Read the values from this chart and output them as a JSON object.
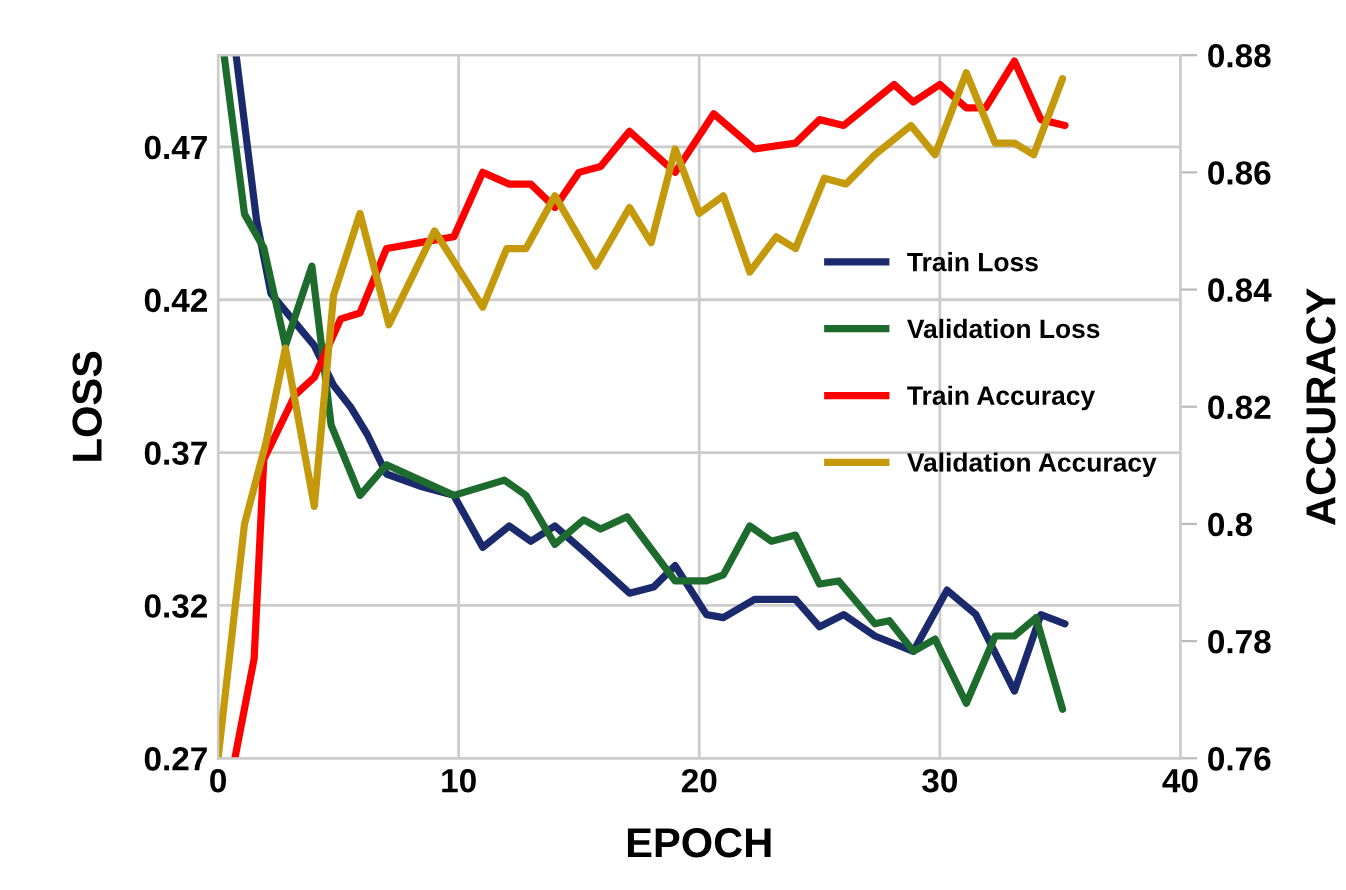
{
  "chart_data": {
    "type": "line",
    "xlabel": "EPOCH",
    "ylabel": "LOSS",
    "y2label": "ACCURACY",
    "xlim": [
      0,
      40
    ],
    "xticks": [
      0,
      10,
      20,
      30,
      40
    ],
    "ylim": [
      0.27,
      0.5
    ],
    "yticks": [
      0.27,
      0.32,
      0.37,
      0.42,
      0.47
    ],
    "y2lim": [
      0.76,
      0.88
    ],
    "y2ticks": [
      0.76,
      0.78,
      {
        "value": 0.8,
        "label": "0.8"
      },
      0.82,
      0.84,
      0.86,
      0.88
    ],
    "grid": true,
    "legend": "right",
    "line_style": "solid",
    "marker": "none",
    "series": [
      {
        "name": "Train Loss",
        "color": "#1a2a6c",
        "x": [
          0.75,
          1.6,
          2.2,
          4,
          4.8,
          5.5,
          6.2,
          7,
          8.4,
          9.8,
          11,
          12.1,
          13,
          14,
          15.3,
          17.1,
          18.1,
          19,
          20.3,
          21,
          22.3,
          24,
          25,
          26,
          27.3,
          28.9,
          30.3,
          31.5,
          33.1,
          34.2,
          35.2
        ],
        "values": [
          0.5,
          0.446,
          0.422,
          0.405,
          0.392,
          0.385,
          0.376,
          0.363,
          0.359,
          0.356,
          0.339,
          0.346,
          0.341,
          0.346,
          0.337,
          0.324,
          0.326,
          0.333,
          0.317,
          0.316,
          0.322,
          0.322,
          0.313,
          0.317,
          0.31,
          0.305,
          0.325,
          0.317,
          0.292,
          0.317,
          0.314
        ]
      },
      {
        "name": "Validation Loss",
        "color": "#1e6b2e",
        "x": [
          0.25,
          1.1,
          1.9,
          2.8,
          3.9,
          4.7,
          5.9,
          7,
          8.4,
          9.8,
          11.9,
          12.8,
          14,
          15.2,
          15.9,
          17,
          19,
          20.3,
          21,
          22.1,
          23,
          24,
          25,
          25.8,
          27.3,
          27.9,
          28.9,
          29.8,
          31.1,
          32.3,
          33.1,
          34,
          35.1
        ],
        "values": [
          0.5,
          0.448,
          0.437,
          0.405,
          0.431,
          0.379,
          0.356,
          0.366,
          0.361,
          0.356,
          0.361,
          0.356,
          0.34,
          0.348,
          0.345,
          0.349,
          0.328,
          0.328,
          0.33,
          0.346,
          0.341,
          0.343,
          0.327,
          0.328,
          0.314,
          0.315,
          0.305,
          0.309,
          0.288,
          0.31,
          0.31,
          0.316,
          0.286
        ]
      },
      {
        "name": "Train Accuracy",
        "color": "#ff0000",
        "axis": "y2",
        "x": [
          0.7,
          1.5,
          1.9,
          3.2,
          4,
          5.1,
          5.9,
          7,
          8.4,
          9.8,
          11,
          12.1,
          13,
          14,
          15,
          15.9,
          17.1,
          19,
          20.6,
          22.3,
          24,
          25,
          26,
          28.1,
          28.9,
          30,
          31.1,
          31.9,
          33.1,
          34.2,
          35.2
        ],
        "values": [
          0.76,
          0.777,
          0.811,
          0.822,
          0.825,
          0.835,
          0.836,
          0.847,
          0.848,
          0.849,
          0.86,
          0.858,
          0.858,
          0.854,
          0.86,
          0.861,
          0.867,
          0.86,
          0.87,
          0.864,
          0.865,
          0.869,
          0.868,
          0.875,
          0.872,
          0.875,
          0.871,
          0.871,
          0.879,
          0.869,
          0.868
        ]
      },
      {
        "name": "Validation Accuracy",
        "color": "#c49a0c",
        "axis": "y2",
        "x": [
          0,
          1.1,
          2,
          2.8,
          4,
          4.8,
          5.9,
          7.1,
          9,
          11,
          12,
          12.8,
          14,
          15.7,
          17.1,
          18,
          19,
          20,
          21,
          22.1,
          23.2,
          24,
          25.2,
          26.1,
          27.3,
          28.8,
          29.8,
          31.1,
          32.3,
          33.1,
          33.9,
          35.1
        ],
        "values": [
          0.76,
          0.8,
          0.814,
          0.83,
          0.803,
          0.839,
          0.853,
          0.834,
          0.85,
          0.837,
          0.847,
          0.847,
          0.856,
          0.844,
          0.854,
          0.848,
          0.864,
          0.853,
          0.856,
          0.843,
          0.849,
          0.847,
          0.859,
          0.858,
          0.863,
          0.868,
          0.863,
          0.877,
          0.865,
          0.865,
          0.863,
          0.876
        ]
      }
    ]
  }
}
